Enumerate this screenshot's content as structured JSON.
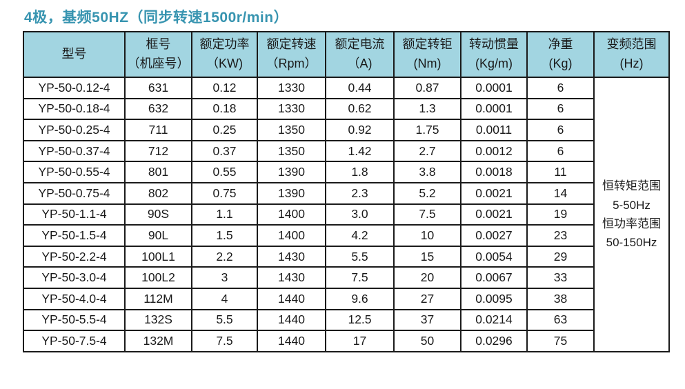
{
  "title": "4极，基频50HZ（同步转速1500r/min）",
  "colors": {
    "title_text": "#3794b0",
    "header_bg": "#a2d5e1",
    "border": "#1a1a1a",
    "cell_bg": "#ffffff"
  },
  "table": {
    "headers": [
      {
        "line1": "型号",
        "line2": ""
      },
      {
        "line1": "框号",
        "line2": "（机座号）"
      },
      {
        "line1": "额定功率",
        "line2": "（KW)"
      },
      {
        "line1": "额定转速",
        "line2": "（Rpm）"
      },
      {
        "line1": "额定电流",
        "line2": "（A)"
      },
      {
        "line1": "额定转钜",
        "line2": "(Nm)"
      },
      {
        "line1": "转动惯量",
        "line2": "(Kg/m)"
      },
      {
        "line1": "净重",
        "line2": "(Kg)"
      },
      {
        "line1": "变频范围",
        "line2": "(Hz)"
      }
    ],
    "rows": [
      [
        "YP-50-0.12-4",
        "631",
        "0.12",
        "1330",
        "0.44",
        "0.87",
        "0.0001",
        "6"
      ],
      [
        "YP-50-0.18-4",
        "632",
        "0.18",
        "1330",
        "0.62",
        "1.3",
        "0.0001",
        "6"
      ],
      [
        "YP-50-0.25-4",
        "711",
        "0.25",
        "1350",
        "0.92",
        "1.75",
        "0.0011",
        "6"
      ],
      [
        "YP-50-0.37-4",
        "712",
        "0.37",
        "1350",
        "1.42",
        "2.7",
        "0.0012",
        "6"
      ],
      [
        "YP-50-0.55-4",
        "801",
        "0.55",
        "1390",
        "1.8",
        "3.8",
        "0.0018",
        "11"
      ],
      [
        "YP-50-0.75-4",
        "802",
        "0.75",
        "1390",
        "2.3",
        "5.2",
        "0.0021",
        "14"
      ],
      [
        "YP-50-1.1-4",
        "90S",
        "1.1",
        "1400",
        "3.0",
        "7.5",
        "0.0021",
        "19"
      ],
      [
        "YP-50-1.5-4",
        "90L",
        "1.5",
        "1400",
        "4.2",
        "10",
        "0.0027",
        "23"
      ],
      [
        "YP-50-2.2-4",
        "100L1",
        "2.2",
        "1430",
        "5.5",
        "15",
        "0.0054",
        "29"
      ],
      [
        "YP-50-3.0-4",
        "100L2",
        "3",
        "1430",
        "7.5",
        "20",
        "0.0067",
        "33"
      ],
      [
        "YP-50-4.0-4",
        "112M",
        "4",
        "1440",
        "9.6",
        "27",
        "0.0095",
        "38"
      ],
      [
        "YP-50-5.5-4",
        "132S",
        "5.5",
        "1440",
        "12.5",
        "37",
        "0.0214",
        "63"
      ],
      [
        "YP-50-7.5-4",
        "132M",
        "7.5",
        "1440",
        "17",
        "50",
        "0.0296",
        "75"
      ]
    ],
    "freq_range": "恒转矩范围\n5-50Hz\n恒功率范围\n50-150Hz"
  },
  "chart_data": {
    "type": "table",
    "title": "4极，基频50HZ（同步转速1500r/min）",
    "columns": [
      "型号",
      "框号（机座号）",
      "额定功率（KW)",
      "额定转速（Rpm）",
      "额定电流（A)",
      "额定转钜(Nm)",
      "转动惯量(Kg/m)",
      "净重(Kg)",
      "变频范围(Hz)"
    ],
    "frequency_range_note": "恒转矩范围 5-50Hz 恒功率范围 50-150Hz"
  }
}
